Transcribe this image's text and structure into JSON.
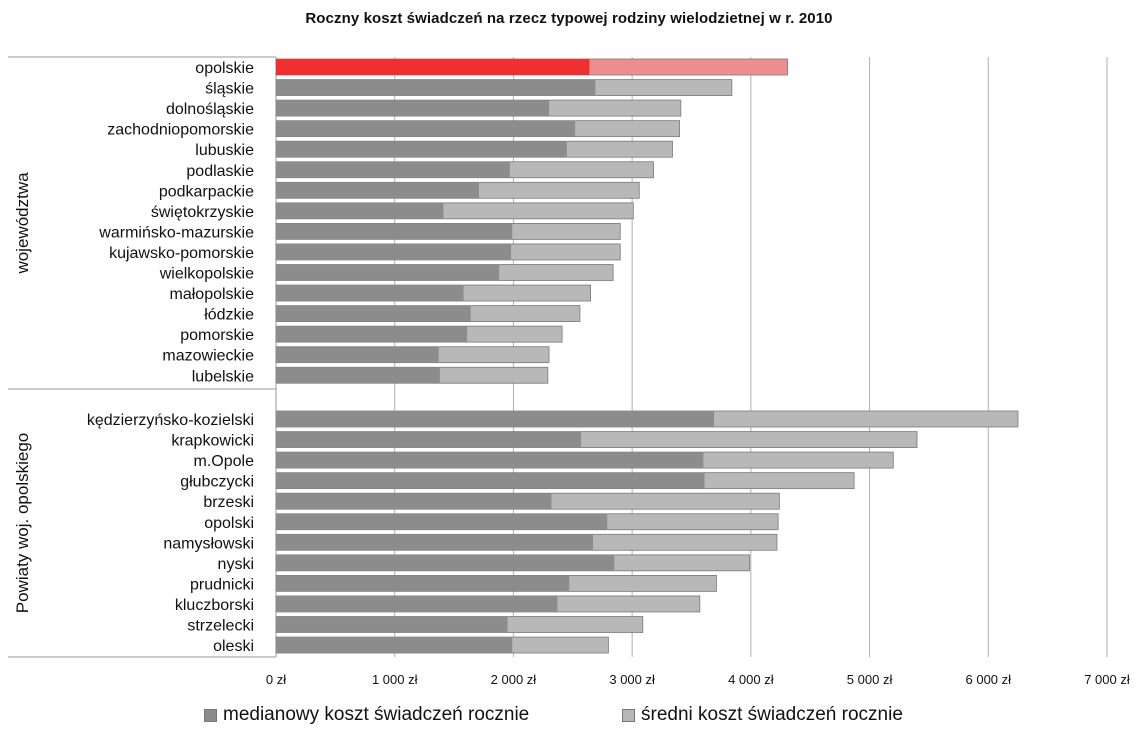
{
  "colors": {
    "median": "#8c8c8c",
    "mean": "#b8b8b8",
    "highlight_median": "#f03030",
    "highlight_mean": "#ef8e8e",
    "grid": "#b0b0b0"
  },
  "chart_data": {
    "type": "bar",
    "orientation": "horizontal",
    "title": "Roczny koszt świadczeń na rzecz typowej rodziny wielodzietnej w r. 2010",
    "xlim": [
      0,
      7000
    ],
    "x_ticks": [
      0,
      1000,
      2000,
      3000,
      4000,
      5000,
      6000,
      7000
    ],
    "x_tick_labels": [
      "0 zł",
      "1 000 zł",
      "2 000 zł",
      "3 000 zł",
      "4 000 zł",
      "5 000 zł",
      "6 000 zł",
      "7 000 zł"
    ],
    "grid": true,
    "legend_position": "bottom",
    "highlight_category": "opolskie",
    "series": [
      {
        "name": "medianowy koszt świadczeń rocznie",
        "key": "median"
      },
      {
        "name": "średni koszt świadczeń rocznie",
        "key": "mean"
      }
    ],
    "groups": [
      {
        "label": "województwa",
        "categories": [
          {
            "name": "opolskie",
            "median": 2640,
            "mean": 4310
          },
          {
            "name": "śląskie",
            "median": 2690,
            "mean": 3840
          },
          {
            "name": "dolnośląskie",
            "median": 2300,
            "mean": 3410
          },
          {
            "name": "zachodniopomorskie",
            "median": 2520,
            "mean": 3400
          },
          {
            "name": "lubuskie",
            "median": 2450,
            "mean": 3340
          },
          {
            "name": "podlaskie",
            "median": 1970,
            "mean": 3180
          },
          {
            "name": "podkarpackie",
            "median": 1710,
            "mean": 3060
          },
          {
            "name": "świętokrzyskie",
            "median": 1410,
            "mean": 3010
          },
          {
            "name": "warmińsko-mazurskie",
            "median": 1990,
            "mean": 2900
          },
          {
            "name": "kujawsko-pomorskie",
            "median": 1980,
            "mean": 2900
          },
          {
            "name": "wielkopolskie",
            "median": 1880,
            "mean": 2840
          },
          {
            "name": "małopolskie",
            "median": 1580,
            "mean": 2650
          },
          {
            "name": "łódzkie",
            "median": 1640,
            "mean": 2560
          },
          {
            "name": "pomorskie",
            "median": 1610,
            "mean": 2410
          },
          {
            "name": "mazowieckie",
            "median": 1370,
            "mean": 2300
          },
          {
            "name": "lubelskie",
            "median": 1380,
            "mean": 2290
          }
        ]
      },
      {
        "label": "Powiaty woj. opolskiego",
        "categories": [
          {
            "name": "kędzierzyńsko-kozielski",
            "median": 3690,
            "mean": 6250
          },
          {
            "name": "krapkowicki",
            "median": 2570,
            "mean": 5400
          },
          {
            "name": "m.Opole",
            "median": 3600,
            "mean": 5200
          },
          {
            "name": "głubczycki",
            "median": 3610,
            "mean": 4870
          },
          {
            "name": "brzeski",
            "median": 2320,
            "mean": 4240
          },
          {
            "name": "opolski",
            "median": 2790,
            "mean": 4230
          },
          {
            "name": "namysłowski",
            "median": 2670,
            "mean": 4220
          },
          {
            "name": "nyski",
            "median": 2850,
            "mean": 3990
          },
          {
            "name": "prudnicki",
            "median": 2470,
            "mean": 3710
          },
          {
            "name": "kluczborski",
            "median": 2370,
            "mean": 3570
          },
          {
            "name": "strzelecki",
            "median": 1950,
            "mean": 3090
          },
          {
            "name": "oleski",
            "median": 1990,
            "mean": 2800
          }
        ]
      }
    ]
  }
}
